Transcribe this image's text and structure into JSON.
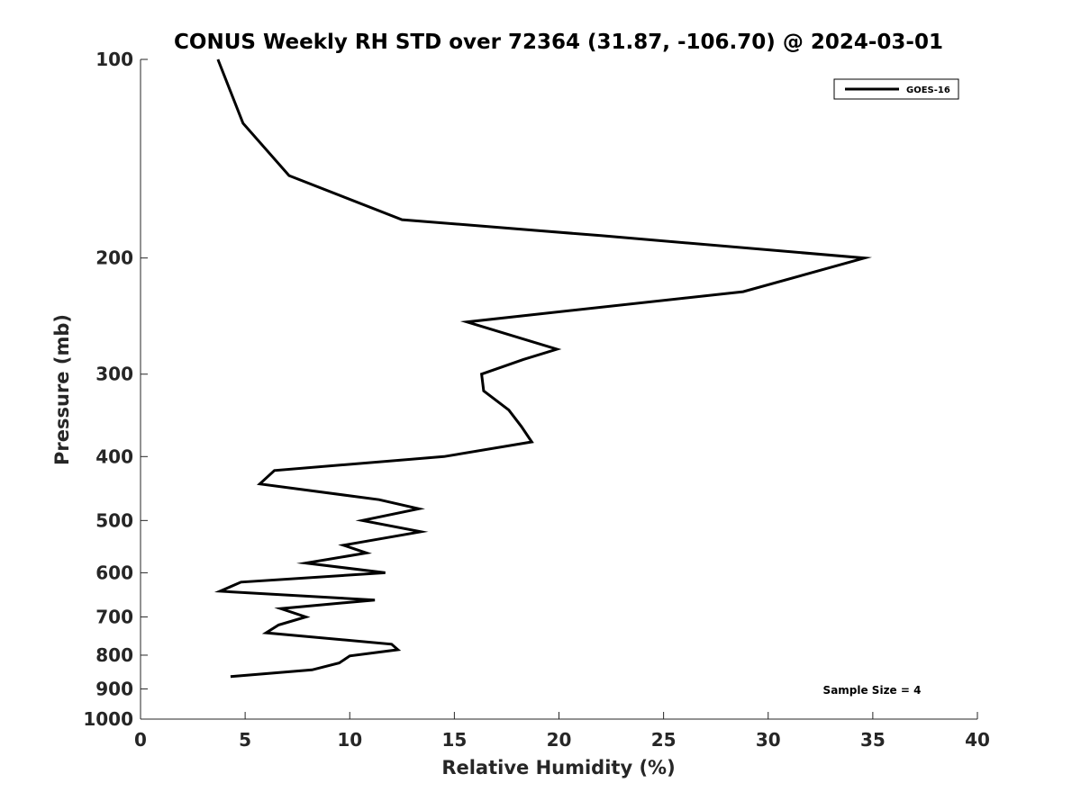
{
  "chart_data": {
    "type": "line",
    "title": "CONUS Weekly RH STD over 72364 (31.87, -106.70) @ 2024-03-01",
    "xlabel": "Relative Humidity (%)",
    "ylabel": "Pressure (mb)",
    "xlim": [
      0,
      40
    ],
    "ylim": [
      100,
      1000
    ],
    "yscale": "log",
    "y_reversed": true,
    "xticks": [
      0,
      5,
      10,
      15,
      20,
      25,
      30,
      35,
      40
    ],
    "yticks": [
      100,
      200,
      300,
      400,
      500,
      600,
      700,
      800,
      900,
      1000
    ],
    "grid": false,
    "legend_position": "top-right",
    "annotation": "Sample Size = 4",
    "series": [
      {
        "name": "GOES-16",
        "color": "#000000",
        "points": [
          {
            "x": 3.7,
            "y": 100
          },
          {
            "x": 4.9,
            "y": 125
          },
          {
            "x": 7.1,
            "y": 150
          },
          {
            "x": 12.5,
            "y": 175
          },
          {
            "x": 22.0,
            "y": 185
          },
          {
            "x": 34.6,
            "y": 200
          },
          {
            "x": 28.8,
            "y": 225
          },
          {
            "x": 15.6,
            "y": 250
          },
          {
            "x": 19.9,
            "y": 275
          },
          {
            "x": 18.3,
            "y": 285
          },
          {
            "x": 16.3,
            "y": 300
          },
          {
            "x": 16.4,
            "y": 318
          },
          {
            "x": 17.6,
            "y": 340
          },
          {
            "x": 18.2,
            "y": 360
          },
          {
            "x": 18.7,
            "y": 380
          },
          {
            "x": 14.5,
            "y": 400
          },
          {
            "x": 6.4,
            "y": 420
          },
          {
            "x": 5.7,
            "y": 440
          },
          {
            "x": 11.4,
            "y": 465
          },
          {
            "x": 13.3,
            "y": 480
          },
          {
            "x": 10.6,
            "y": 500
          },
          {
            "x": 13.4,
            "y": 520
          },
          {
            "x": 9.7,
            "y": 545
          },
          {
            "x": 10.8,
            "y": 560
          },
          {
            "x": 7.9,
            "y": 580
          },
          {
            "x": 11.7,
            "y": 600
          },
          {
            "x": 4.8,
            "y": 620
          },
          {
            "x": 3.8,
            "y": 640
          },
          {
            "x": 11.2,
            "y": 660
          },
          {
            "x": 6.7,
            "y": 680
          },
          {
            "x": 7.9,
            "y": 700
          },
          {
            "x": 6.6,
            "y": 720
          },
          {
            "x": 6.0,
            "y": 740
          },
          {
            "x": 12.0,
            "y": 770
          },
          {
            "x": 12.3,
            "y": 785
          },
          {
            "x": 10.0,
            "y": 802
          },
          {
            "x": 9.5,
            "y": 822
          },
          {
            "x": 8.2,
            "y": 842
          },
          {
            "x": 4.3,
            "y": 862
          }
        ]
      }
    ]
  }
}
